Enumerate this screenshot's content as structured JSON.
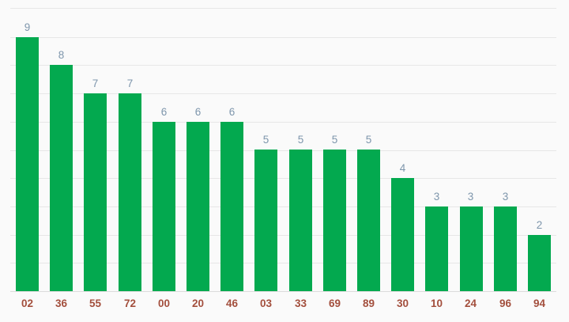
{
  "chart": {
    "background_color": "#fafafa",
    "bar_color": "#03a94f",
    "annotation_color": "#7e96ac",
    "x_label_color": "#a34f3d",
    "gridline_color": "#e7e7e7",
    "baseline_color": "#dcdcdc"
  },
  "chart_data": {
    "type": "bar",
    "categories": [
      "02",
      "36",
      "55",
      "72",
      "00",
      "20",
      "46",
      "03",
      "33",
      "69",
      "89",
      "30",
      "10",
      "24",
      "96",
      "94"
    ],
    "values": [
      9,
      8,
      7,
      7,
      6,
      6,
      6,
      5,
      5,
      5,
      5,
      4,
      3,
      3,
      3,
      2
    ],
    "title": "",
    "xlabel": "",
    "ylabel": "",
    "ylim": [
      0,
      10
    ],
    "grid": true,
    "gridline_step": 1,
    "legend": "none",
    "annotations": "value shown above each bar",
    "y_axis_tick_labels_visible": false
  }
}
